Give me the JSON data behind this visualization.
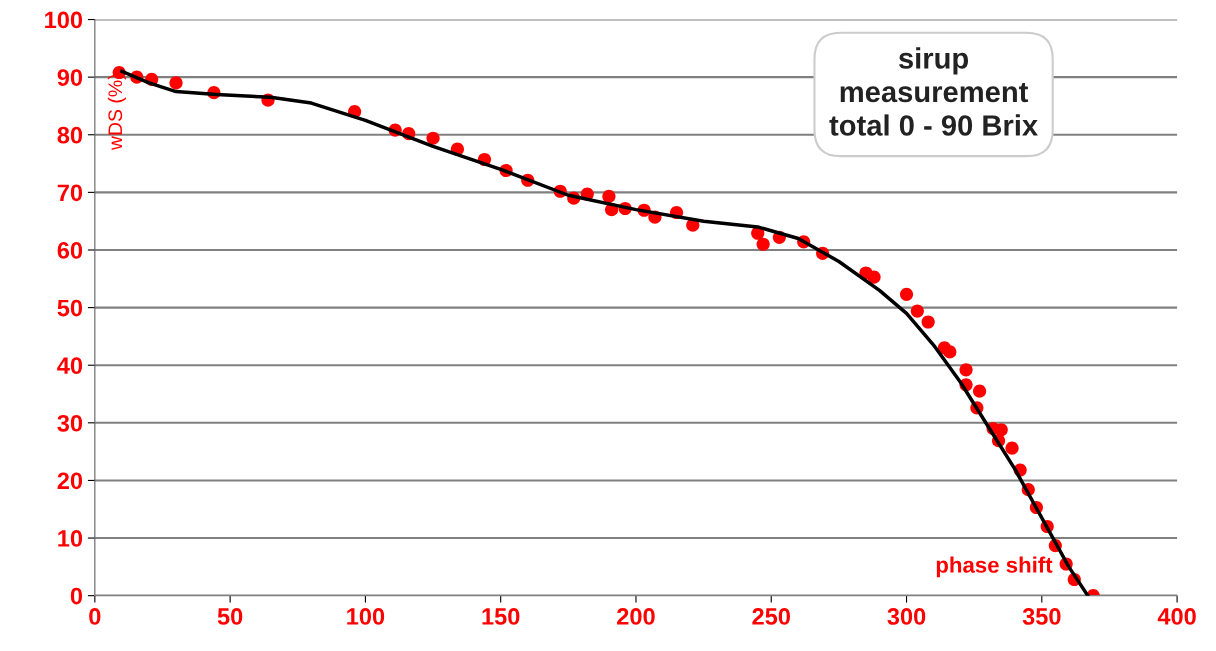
{
  "chart_data": {
    "type": "scatter",
    "ylabel": "wDS (%)",
    "annotations": [
      "sirup\nmeasurement\ntotal 0 - 90 Brix",
      "phase shift"
    ],
    "xlim": [
      0,
      400
    ],
    "xticks": [
      0,
      50,
      100,
      150,
      200,
      250,
      300,
      350,
      400
    ],
    "ylim": [
      0,
      100
    ],
    "yticks": [
      0,
      10,
      20,
      30,
      40,
      50,
      60,
      70,
      80,
      90,
      100
    ],
    "grid": "y",
    "legend": false,
    "series": [
      {
        "color": "#ff0000",
        "marker": "circle",
        "x": [
          9,
          15.5,
          21,
          30,
          44,
          64,
          96,
          111,
          116,
          125,
          134,
          144,
          152,
          160,
          172,
          177,
          182,
          190,
          191,
          196,
          203,
          207,
          215,
          221,
          245,
          247,
          253,
          262,
          269,
          285,
          288,
          300,
          304,
          308,
          314,
          316,
          322,
          322,
          327,
          326,
          332,
          335,
          334,
          339,
          342,
          345,
          348,
          352,
          355,
          359,
          362,
          369
        ],
        "values": [
          90.8,
          90,
          89.6,
          89,
          87.3,
          86,
          84,
          80.8,
          80.2,
          79.4,
          77.5,
          75.7,
          73.8,
          72.1,
          70.2,
          69,
          69.7,
          69.3,
          67,
          67.2,
          66.9,
          65.7,
          66.5,
          64.3,
          62.9,
          61,
          62.2,
          61.4,
          59.4,
          56,
          55.3,
          52.3,
          49.4,
          47.5,
          43,
          42.3,
          39.2,
          36.6,
          35.5,
          32.6,
          29,
          28.8,
          26.9,
          25.6,
          21.8,
          18.4,
          15.3,
          12,
          8.7,
          5.5,
          2.8,
          0
        ]
      },
      {
        "type": "line",
        "color": "#000000",
        "marker": "none",
        "line_style": "solid",
        "x": [
          10,
          20,
          30,
          45,
          65,
          80,
          100,
          125,
          150,
          175,
          200,
          225,
          245,
          260,
          275,
          290,
          300,
          310,
          320,
          330,
          340,
          350,
          360,
          367
        ],
        "values": [
          91,
          89,
          87.5,
          87,
          86.5,
          85.5,
          82.5,
          78,
          74,
          69.5,
          67,
          65,
          64,
          62,
          58,
          53,
          49,
          43.5,
          37,
          29.5,
          22,
          13.5,
          5,
          0
        ]
      }
    ]
  }
}
